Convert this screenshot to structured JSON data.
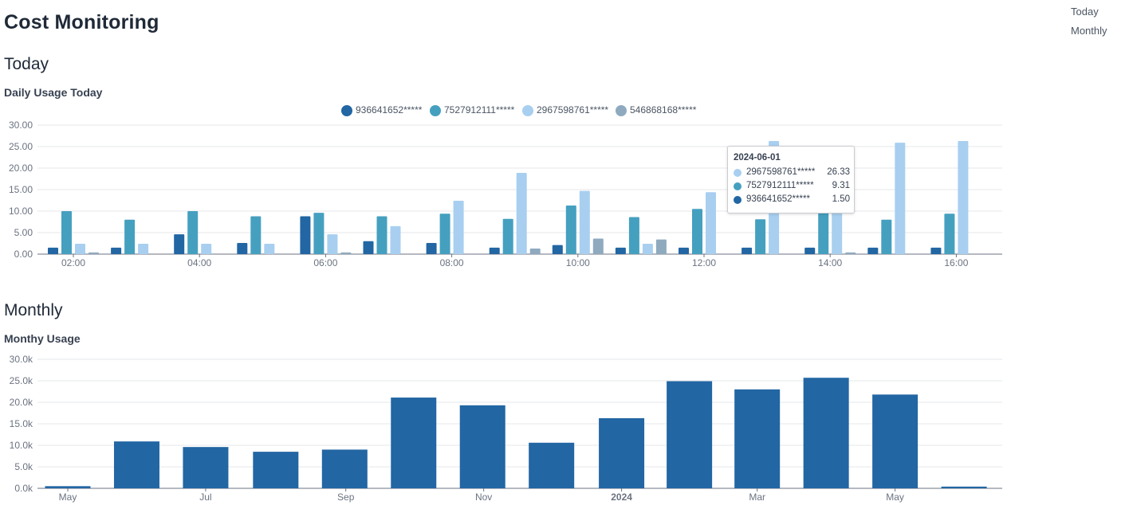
{
  "page": {
    "title": "Cost Monitoring"
  },
  "nav": {
    "items": [
      {
        "label": "Today"
      },
      {
        "label": "Monthly"
      }
    ]
  },
  "sections": {
    "today": {
      "heading": "Today",
      "chart_title": "Daily Usage Today"
    },
    "monthly": {
      "heading": "Monthly",
      "chart_title": "Monthy Usage"
    }
  },
  "colors": {
    "s1": "#2266a3",
    "s2": "#45a0c0",
    "s3": "#a8cff0",
    "s4": "#8faabf",
    "monthly": "#2266a3"
  },
  "tooltip": {
    "title": "2024-06-01",
    "rows": [
      {
        "name": "2967598761*****",
        "value": "26.33"
      },
      {
        "name": "7527912111*****",
        "value": "9.31"
      },
      {
        "name": "936641652*****",
        "value": "1.50"
      }
    ]
  },
  "chart_data": [
    {
      "type": "bar",
      "title": "Daily Usage Today",
      "legend_position": "top",
      "ylim": [
        0,
        30
      ],
      "y_ticks": [
        "0.00",
        "5.00",
        "10.00",
        "15.00",
        "20.00",
        "25.00",
        "30.00"
      ],
      "x_ticks": [
        "02:00",
        "04:00",
        "06:00",
        "08:00",
        "10:00",
        "12:00",
        "14:00",
        "16:00"
      ],
      "categories": [
        "02:00",
        "03:00",
        "04:00",
        "05:00",
        "06:00",
        "07:00",
        "08:00",
        "09:00",
        "10:00",
        "11:00",
        "12:00",
        "13:00",
        "14:00",
        "15:00",
        "16:00"
      ],
      "series": [
        {
          "name": "936641652*****",
          "values": [
            1.5,
            1.5,
            4.6,
            2.6,
            8.8,
            3.0,
            2.6,
            1.5,
            2.1,
            1.5,
            1.5,
            1.5,
            1.5,
            1.5,
            1.5
          ]
        },
        {
          "name": "7527912111*****",
          "values": [
            10.0,
            8.0,
            10.0,
            8.8,
            9.6,
            8.8,
            9.4,
            8.2,
            11.3,
            8.6,
            10.5,
            8.1,
            9.8,
            8.0,
            9.4
          ]
        },
        {
          "name": "2967598761*****",
          "values": [
            2.4,
            2.4,
            2.4,
            2.4,
            4.6,
            6.5,
            12.4,
            18.9,
            14.7,
            2.4,
            14.4,
            26.3,
            11.7,
            25.9,
            26.3
          ]
        },
        {
          "name": "546868168*****",
          "values": [
            0.4,
            0,
            0,
            0,
            0.4,
            0,
            0,
            1.3,
            3.6,
            3.4,
            0,
            0,
            0.4,
            0,
            0
          ]
        }
      ]
    },
    {
      "type": "bar",
      "title": "Monthy Usage",
      "ylim": [
        0,
        30000
      ],
      "y_ticks": [
        "0.0k",
        "5.0k",
        "10.0k",
        "15.0k",
        "20.0k",
        "25.0k",
        "30.0k"
      ],
      "x_ticks": [
        "May",
        "Jul",
        "Sep",
        "Nov",
        "2024",
        "Mar",
        "May"
      ],
      "categories": [
        "2023-05",
        "2023-06",
        "2023-07",
        "2023-08",
        "2023-09",
        "2023-10",
        "2023-11",
        "2023-12",
        "2024-01",
        "2024-02",
        "2024-03",
        "2024-04",
        "2024-05",
        "2024-06"
      ],
      "values": [
        500,
        10900,
        9600,
        8500,
        9000,
        21100,
        19300,
        10600,
        16300,
        24900,
        23000,
        25700,
        21800,
        400
      ]
    }
  ]
}
